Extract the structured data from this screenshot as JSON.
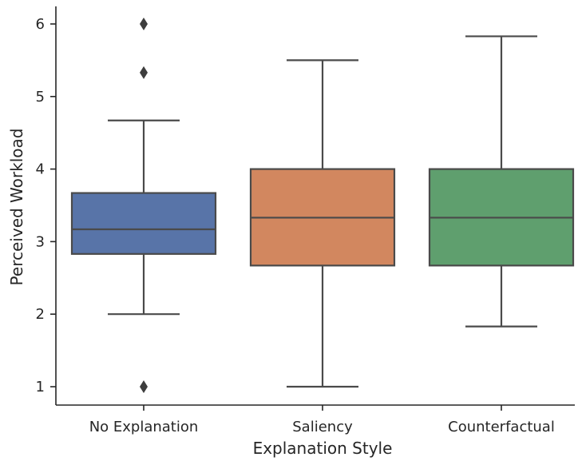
{
  "chart_data": {
    "type": "box",
    "xlabel": "Explanation Style",
    "ylabel": "Perceived Workload",
    "ylim": [
      0.8,
      6.25
    ],
    "yticks": [
      1,
      2,
      3,
      4,
      5,
      6
    ],
    "grid": false,
    "categories": [
      "No Explanation",
      "Saliency",
      "Counterfactual"
    ],
    "series": [
      {
        "category": "No Explanation",
        "color": "#5874a8",
        "whisker_low": 2.0,
        "q1": 2.83,
        "median": 3.17,
        "q3": 3.67,
        "whisker_high": 4.67,
        "outliers": [
          6.0,
          5.33,
          1.0
        ]
      },
      {
        "category": "Saliency",
        "color": "#d2875f",
        "whisker_low": 1.0,
        "q1": 2.67,
        "median": 3.33,
        "q3": 4.0,
        "whisker_high": 5.5,
        "outliers": []
      },
      {
        "category": "Counterfactual",
        "color": "#5f9f6e",
        "whisker_low": 1.83,
        "q1": 2.67,
        "median": 3.33,
        "q3": 4.0,
        "whisker_high": 5.83,
        "outliers": []
      }
    ]
  }
}
